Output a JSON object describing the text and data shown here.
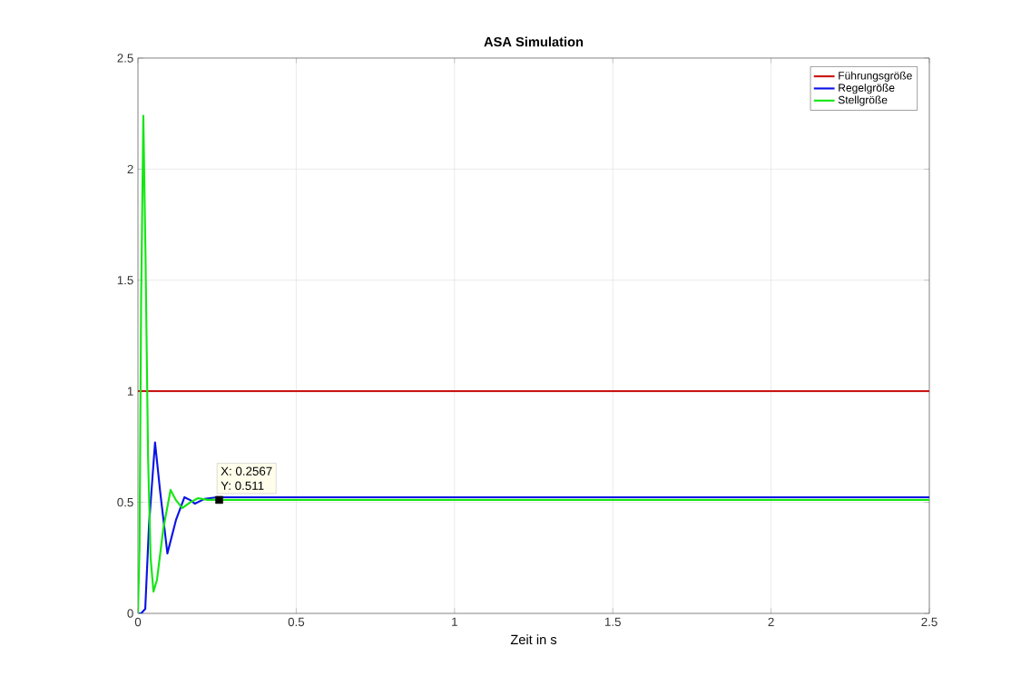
{
  "chart_data": {
    "type": "line",
    "title": "ASA Simulation",
    "xlabel": "Zeit in s",
    "xlim": [
      0,
      2.5
    ],
    "ylim": [
      0,
      2.5
    ],
    "xticks": [
      0,
      0.5,
      1,
      1.5,
      2,
      2.5
    ],
    "yticks": [
      0,
      0.5,
      1,
      1.5,
      2,
      2.5
    ],
    "grid": true,
    "legend": "top right",
    "line_style": "solid",
    "marker": "none",
    "series": [
      {
        "name": "Führungsgröße",
        "color": "#c81414",
        "x": [
          0,
          2.5
        ],
        "values": [
          1,
          1
        ]
      },
      {
        "name": "Regelgröße",
        "color": "#0a14e6",
        "x": [
          0,
          0.01,
          0.023,
          0.035,
          0.054,
          0.07,
          0.093,
          0.12,
          0.147,
          0.165,
          0.18,
          0.21,
          0.25,
          0.2567,
          0.4,
          1,
          2.5
        ],
        "values": [
          0,
          0,
          0.02,
          0.4,
          0.77,
          0.55,
          0.27,
          0.42,
          0.523,
          0.51,
          0.494,
          0.515,
          0.523,
          0.523,
          0.523,
          0.523,
          0.523
        ]
      },
      {
        "name": "Stellgröße",
        "color": "#14e614",
        "x": [
          0,
          0.005,
          0.01,
          0.017,
          0.024,
          0.032,
          0.04,
          0.049,
          0.06,
          0.08,
          0.103,
          0.12,
          0.14,
          0.165,
          0.19,
          0.22,
          0.2567,
          0.4,
          1,
          2.5
        ],
        "values": [
          0,
          0.3,
          1.4,
          2.24,
          1.6,
          0.7,
          0.25,
          0.098,
          0.15,
          0.38,
          0.556,
          0.51,
          0.474,
          0.5,
          0.519,
          0.511,
          0.511,
          0.511,
          0.511,
          0.511
        ]
      }
    ],
    "annotations": [
      {
        "text": "X: 0.2567",
        "x": 0.2567,
        "y": 0.511
      },
      "Y: 0.511"
    ]
  }
}
